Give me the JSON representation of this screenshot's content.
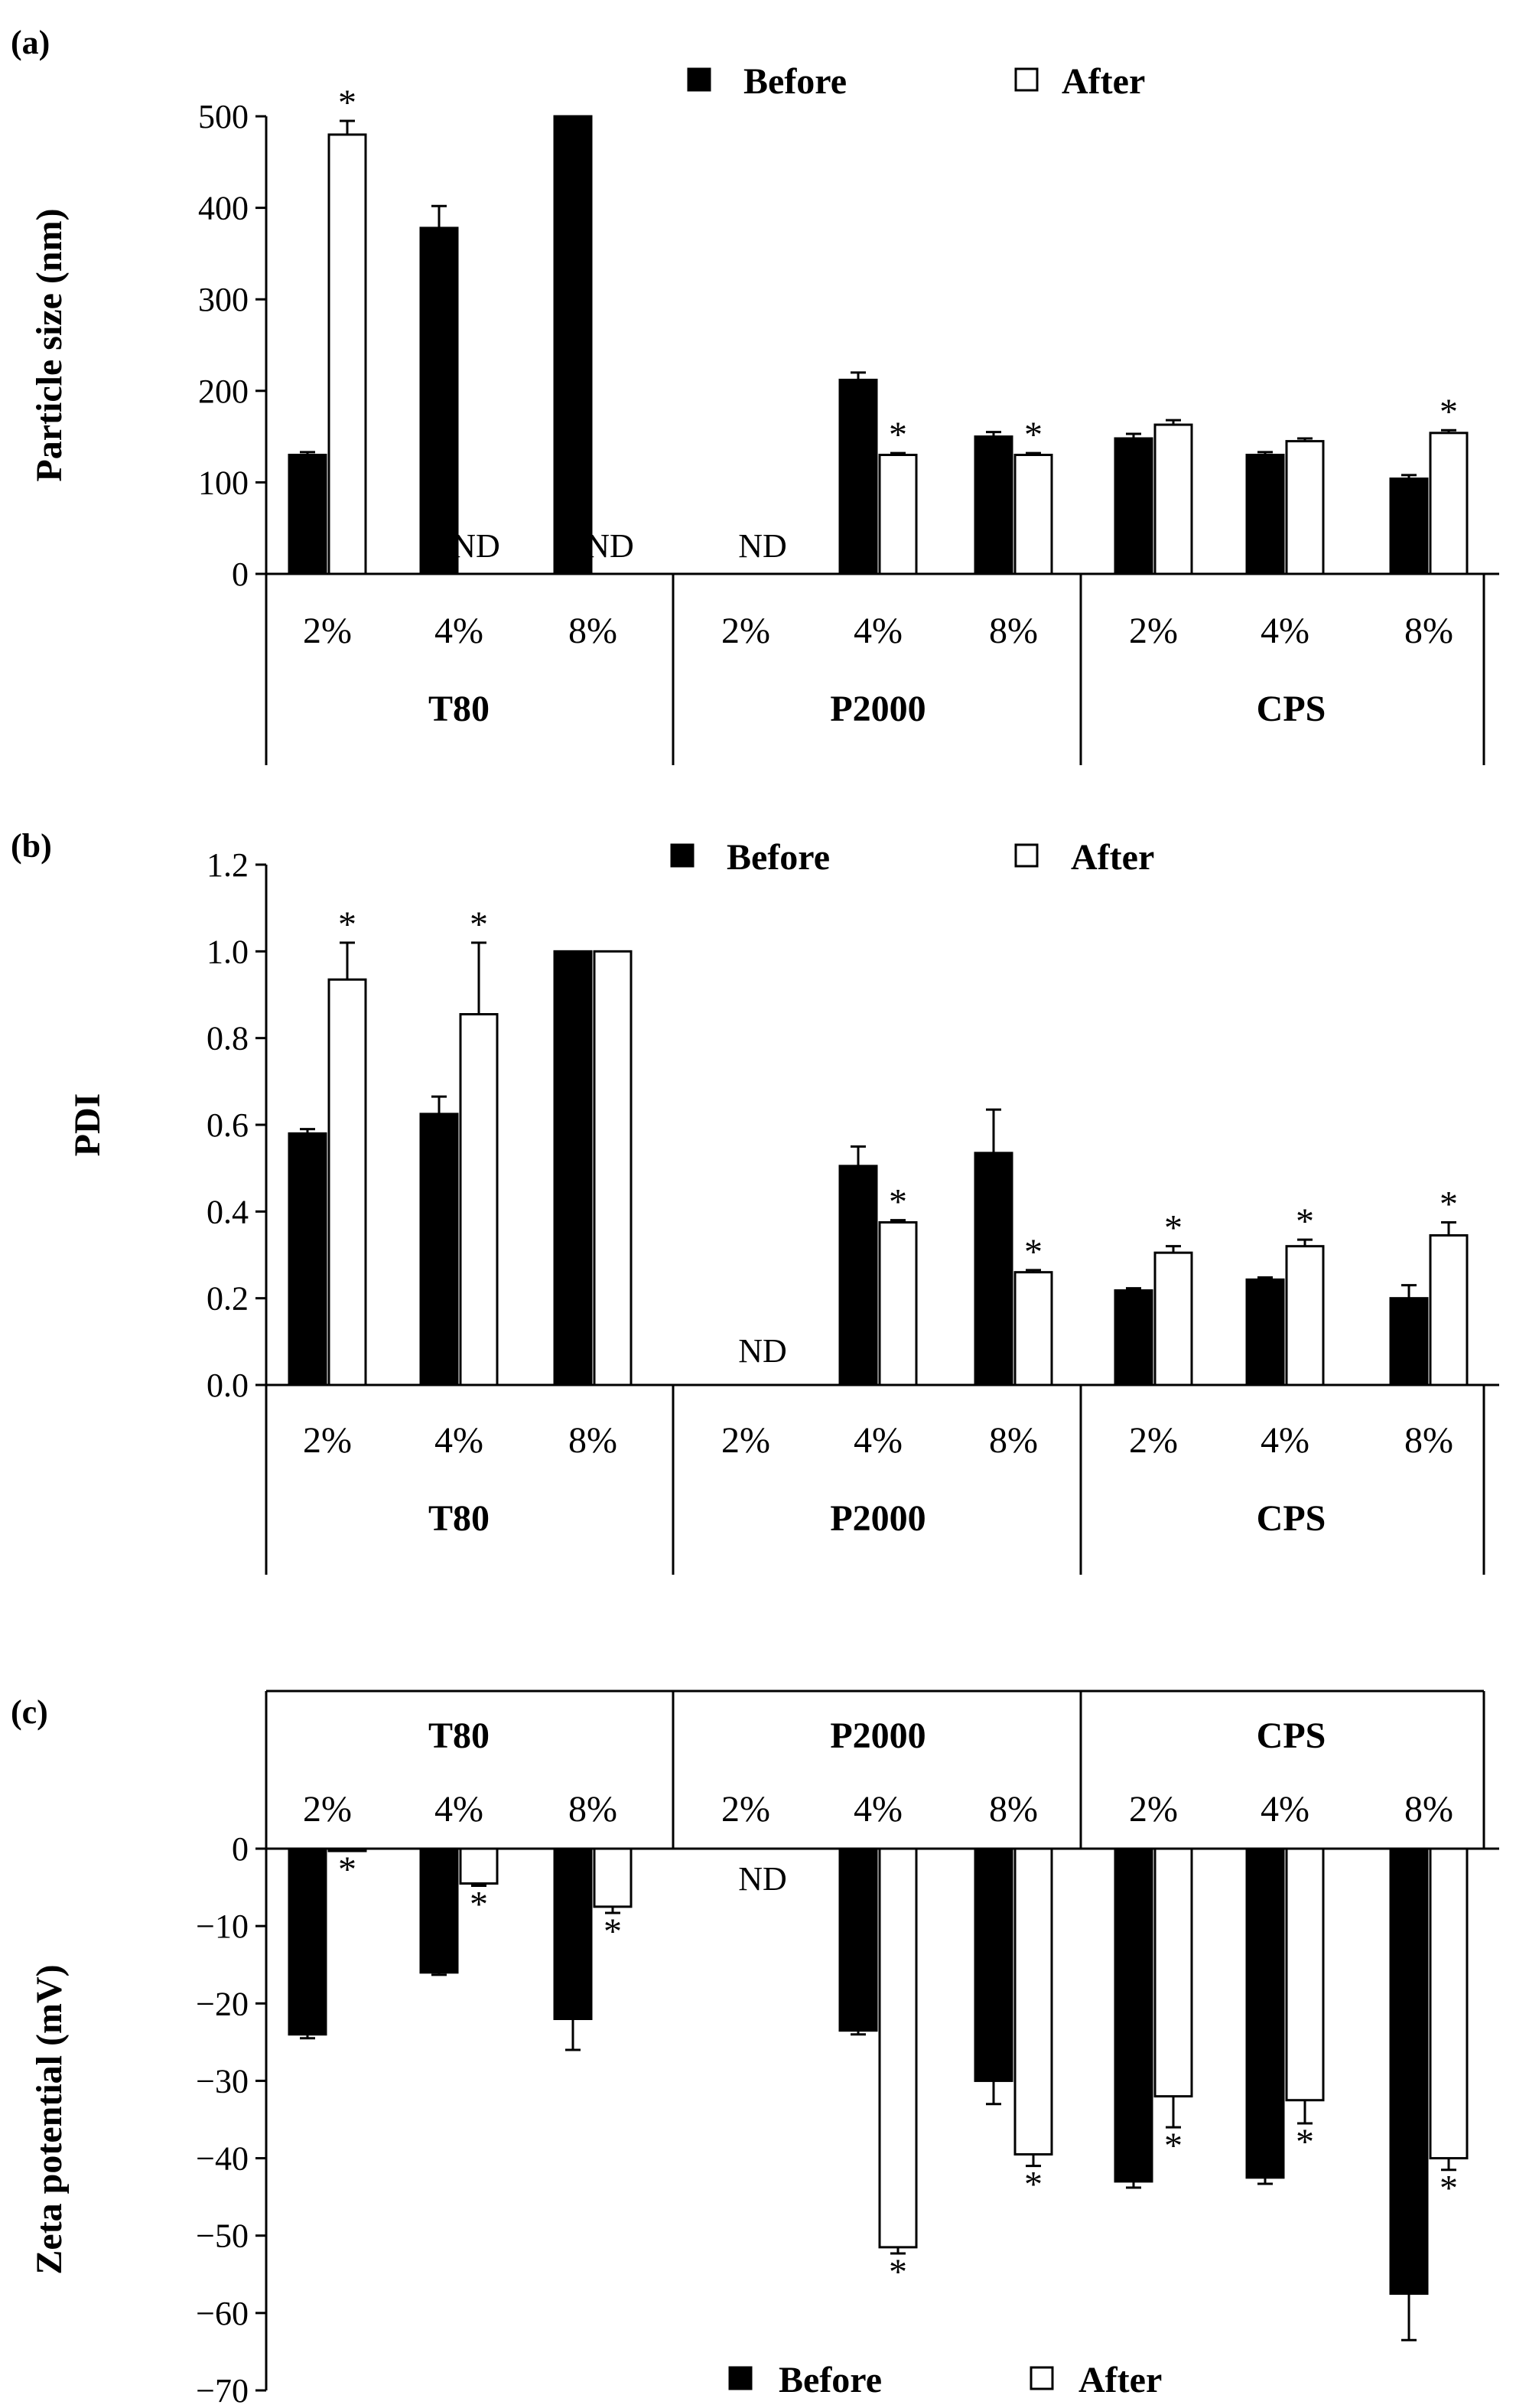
{
  "colors": {
    "before": "#000000",
    "after": "#ffffff",
    "axis": "#000000"
  },
  "chart_data": [
    {
      "type": "bar",
      "panel_label": "(a)",
      "ylabel": "Particle size (nm)",
      "ylim": [
        0,
        500
      ],
      "yticks": [
        "0",
        "100",
        "200",
        "300",
        "400",
        "500"
      ],
      "groups": [
        "T80",
        "P2000",
        "CPS"
      ],
      "categories": [
        "2%",
        "4%",
        "8%",
        "2%",
        "4%",
        "8%",
        "2%",
        "4%",
        "8%"
      ],
      "legend": [
        "Before",
        "After"
      ],
      "legend_position": "top-center",
      "series": [
        {
          "name": "Before",
          "values": [
            130,
            378,
            500,
            null,
            212,
            150,
            148,
            130,
            104
          ],
          "errors": [
            3,
            24,
            0,
            null,
            8,
            5,
            5,
            3,
            4
          ]
        },
        {
          "name": "After",
          "values": [
            480,
            null,
            null,
            null,
            130,
            130,
            163,
            145,
            154
          ],
          "errors": [
            15,
            null,
            null,
            null,
            2,
            2,
            5,
            3,
            3
          ]
        }
      ],
      "significance": [
        [
          false,
          false,
          false,
          false,
          false,
          false,
          false,
          false,
          false
        ],
        [
          true,
          false,
          false,
          false,
          true,
          true,
          false,
          false,
          true
        ]
      ],
      "nd_marks": [
        {
          "index": 1,
          "label": "ND"
        },
        {
          "index": 2,
          "label": "ND"
        },
        {
          "index": 3,
          "label": "ND"
        }
      ]
    },
    {
      "type": "bar",
      "panel_label": "(b)",
      "ylabel": "PDI",
      "ylim": [
        0,
        1.2
      ],
      "yticks": [
        "0.0",
        "0.2",
        "0.4",
        "0.6",
        "0.8",
        "1.0",
        "1.2"
      ],
      "groups": [
        "T80",
        "P2000",
        "CPS"
      ],
      "categories": [
        "2%",
        "4%",
        "8%",
        "2%",
        "4%",
        "8%",
        "2%",
        "4%",
        "8%"
      ],
      "legend": [
        "Before",
        "After"
      ],
      "legend_position": "top-center",
      "series": [
        {
          "name": "Before",
          "values": [
            0.58,
            0.625,
            1.0,
            null,
            0.505,
            0.535,
            0.218,
            0.243,
            0.2
          ],
          "errors": [
            0.01,
            0.04,
            0,
            null,
            0.045,
            0.1,
            0.005,
            0.005,
            0.03
          ]
        },
        {
          "name": "After",
          "values": [
            0.935,
            0.855,
            1.0,
            null,
            0.375,
            0.26,
            0.305,
            0.32,
            0.345
          ],
          "errors": [
            0.085,
            0.165,
            0,
            null,
            0.005,
            0.005,
            0.015,
            0.015,
            0.03
          ]
        }
      ],
      "significance": [
        [
          false,
          false,
          false,
          false,
          false,
          false,
          false,
          false,
          false
        ],
        [
          true,
          true,
          false,
          false,
          true,
          true,
          true,
          true,
          true
        ]
      ],
      "nd_marks": [
        {
          "index": 3,
          "label": "ND"
        }
      ]
    },
    {
      "type": "bar",
      "panel_label": "(c)",
      "ylabel": "Zeta potential (mV)",
      "ylim": [
        -70,
        0
      ],
      "yticks": [
        "0",
        "−10",
        "−20",
        "−30",
        "−40",
        "−50",
        "−60",
        "−70"
      ],
      "groups": [
        "T80",
        "P2000",
        "CPS"
      ],
      "categories": [
        "2%",
        "4%",
        "8%",
        "2%",
        "4%",
        "8%",
        "2%",
        "4%",
        "8%"
      ],
      "legend": [
        "Before",
        "After"
      ],
      "legend_position": "bottom-center",
      "series": [
        {
          "name": "Before",
          "values": [
            -24,
            -16,
            -22,
            null,
            -23.5,
            -30,
            -43,
            -42.5,
            -57.5
          ],
          "errors": [
            0.5,
            0.3,
            4,
            null,
            0.5,
            3,
            0.8,
            0.8,
            6
          ]
        },
        {
          "name": "After",
          "values": [
            -0.3,
            -4.5,
            -7.5,
            null,
            -51.5,
            -39.5,
            -32,
            -32.5,
            -40
          ],
          "errors": [
            0,
            0.3,
            0.8,
            null,
            0.8,
            1.5,
            4,
            3,
            1.5
          ]
        }
      ],
      "significance": [
        [
          false,
          false,
          false,
          false,
          false,
          false,
          false,
          false,
          false
        ],
        [
          true,
          true,
          true,
          false,
          true,
          true,
          true,
          true,
          true
        ]
      ],
      "nd_marks": [
        {
          "index": 3,
          "label": "ND"
        }
      ]
    }
  ]
}
